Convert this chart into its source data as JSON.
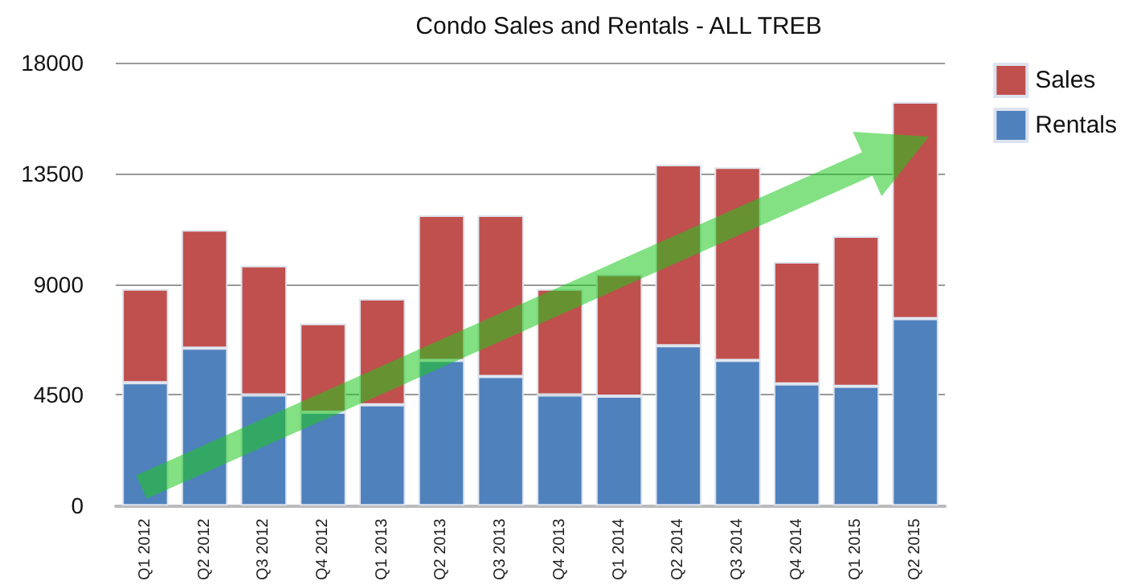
{
  "chart_data": {
    "type": "bar",
    "title": "Condo Sales and Rentals - ALL TREB",
    "stacked": true,
    "categories": [
      "Q1 2012",
      "Q2 2012",
      "Q3 2012",
      "Q4 2012",
      "Q1 2013",
      "Q2 2013",
      "Q3 2013",
      "Q4 2013",
      "Q1 2014",
      "Q2 2014",
      "Q3 2014",
      "Q4 2014",
      "Q1 2015",
      "Q2 2015"
    ],
    "series": [
      {
        "name": "Rentals",
        "color": "#4f81bd",
        "values": [
          5000,
          6400,
          4500,
          3800,
          4100,
          5900,
          5250,
          4500,
          4450,
          6500,
          5900,
          4950,
          4850,
          7600
        ]
      },
      {
        "name": "Sales",
        "color": "#c0504d",
        "values": [
          3800,
          4800,
          5250,
          3600,
          4300,
          5900,
          6550,
          4300,
          4950,
          7350,
          7850,
          4950,
          6100,
          8800
        ]
      }
    ],
    "ylim": [
      0,
      18000
    ],
    "yticks": [
      0,
      {
        "value": 4500,
        "label": "4500"
      },
      {
        "value": 9000,
        "label": "9000"
      },
      {
        "value": 13500,
        "label": "13500"
      },
      {
        "value": 18000,
        "label": "18000"
      }
    ],
    "grid": "y",
    "legend": "top right"
  }
}
